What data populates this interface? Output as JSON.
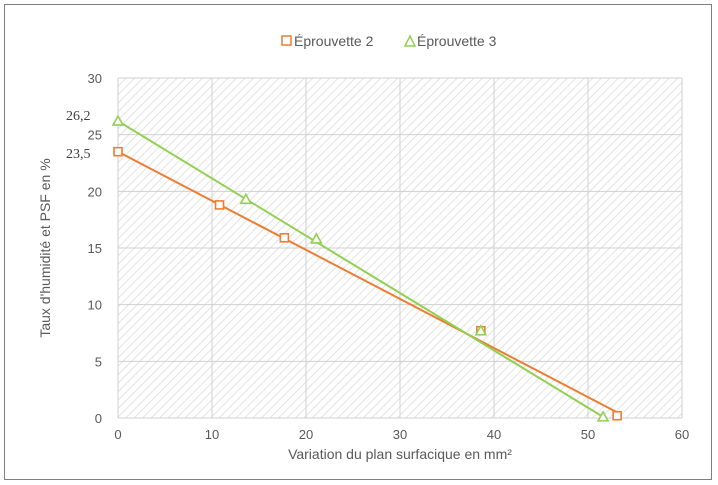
{
  "chart_data": {
    "type": "scatter",
    "title": "",
    "xlabel": "Variation du plan surfacique en mm²",
    "ylabel": "Taux d'humidité et PSF en %",
    "xlim": [
      0,
      60
    ],
    "ylim": [
      0,
      30
    ],
    "xticks": [
      "0",
      "10",
      "20",
      "30",
      "40",
      "50",
      "60"
    ],
    "yticks": [
      "0",
      "5",
      "10",
      "15",
      "20",
      "25",
      "30"
    ],
    "grid": true,
    "legend_position": "top",
    "annotations": [
      "26,2",
      "23,5"
    ],
    "series": [
      {
        "name": "Éprouvette 2",
        "marker": "square",
        "color": "#ED7D31",
        "x": [
          0,
          10.8,
          17.7,
          38.6,
          53.1
        ],
        "y": [
          23.5,
          18.8,
          15.9,
          7.7,
          0.2
        ],
        "trendline": {
          "x": [
            0,
            53.1
          ],
          "y": [
            23.5,
            0.5
          ]
        }
      },
      {
        "name": "Éprouvette 3",
        "marker": "triangle",
        "color": "#92D050",
        "x": [
          0,
          13.6,
          21.1,
          38.6,
          51.6
        ],
        "y": [
          26.2,
          19.3,
          15.8,
          7.7,
          0.1
        ],
        "trendline": {
          "x": [
            0,
            51.6
          ],
          "y": [
            26.2,
            0.1
          ]
        }
      }
    ]
  }
}
